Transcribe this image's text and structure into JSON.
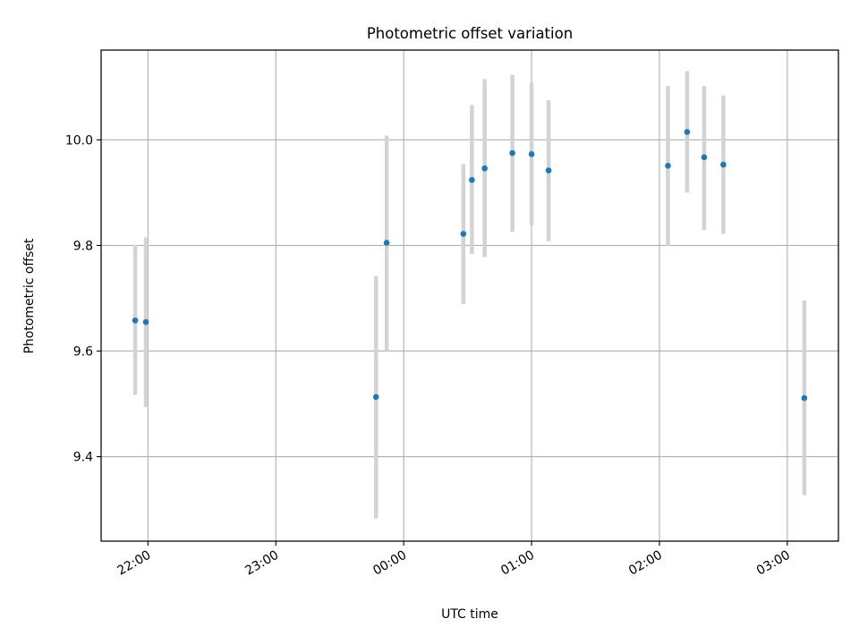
{
  "chart_data": {
    "type": "scatter",
    "title": "Photometric offset variation",
    "xlabel": "UTC time",
    "ylabel": "Photometric offset",
    "x_ticks": [
      "22:00",
      "23:00",
      "00:00",
      "01:00",
      "02:00",
      "03:00"
    ],
    "y_ticks": [
      "9.4",
      "9.6",
      "9.8",
      "10.0"
    ],
    "xlim": [
      "21:38",
      "03:24"
    ],
    "ylim": [
      9.24,
      10.17
    ],
    "grid": true,
    "colors": {
      "points": "#1f77b4",
      "errorbars": "#d3d3d3",
      "grid": "#b0b0b0"
    },
    "series": [
      {
        "points": [
          {
            "x": "21:54",
            "y": 9.658,
            "y_low": 9.517,
            "y_high": 9.801
          },
          {
            "x": "21:59",
            "y": 9.655,
            "y_low": 9.494,
            "y_high": 9.815
          },
          {
            "x": "23:47",
            "y": 9.513,
            "y_low": 9.283,
            "y_high": 9.742
          },
          {
            "x": "23:52",
            "y": 9.805,
            "y_low": 9.6,
            "y_high": 10.008
          },
          {
            "x": "00:28",
            "y": 9.822,
            "y_low": 9.689,
            "y_high": 9.954
          },
          {
            "x": "00:32",
            "y": 9.924,
            "y_low": 9.784,
            "y_high": 10.066
          },
          {
            "x": "00:38",
            "y": 9.946,
            "y_low": 9.778,
            "y_high": 10.115
          },
          {
            "x": "00:51",
            "y": 9.975,
            "y_low": 9.826,
            "y_high": 10.123
          },
          {
            "x": "01:00",
            "y": 9.973,
            "y_low": 9.838,
            "y_high": 10.108
          },
          {
            "x": "01:08",
            "y": 9.942,
            "y_low": 9.808,
            "y_high": 10.075
          },
          {
            "x": "02:04",
            "y": 9.951,
            "y_low": 9.799,
            "y_high": 10.102
          },
          {
            "x": "02:13",
            "y": 10.015,
            "y_low": 9.9,
            "y_high": 10.13
          },
          {
            "x": "02:21",
            "y": 9.967,
            "y_low": 9.829,
            "y_high": 10.102
          },
          {
            "x": "02:30",
            "y": 9.953,
            "y_low": 9.822,
            "y_high": 10.084
          },
          {
            "x": "03:08",
            "y": 9.511,
            "y_low": 9.327,
            "y_high": 9.696
          }
        ]
      }
    ]
  }
}
